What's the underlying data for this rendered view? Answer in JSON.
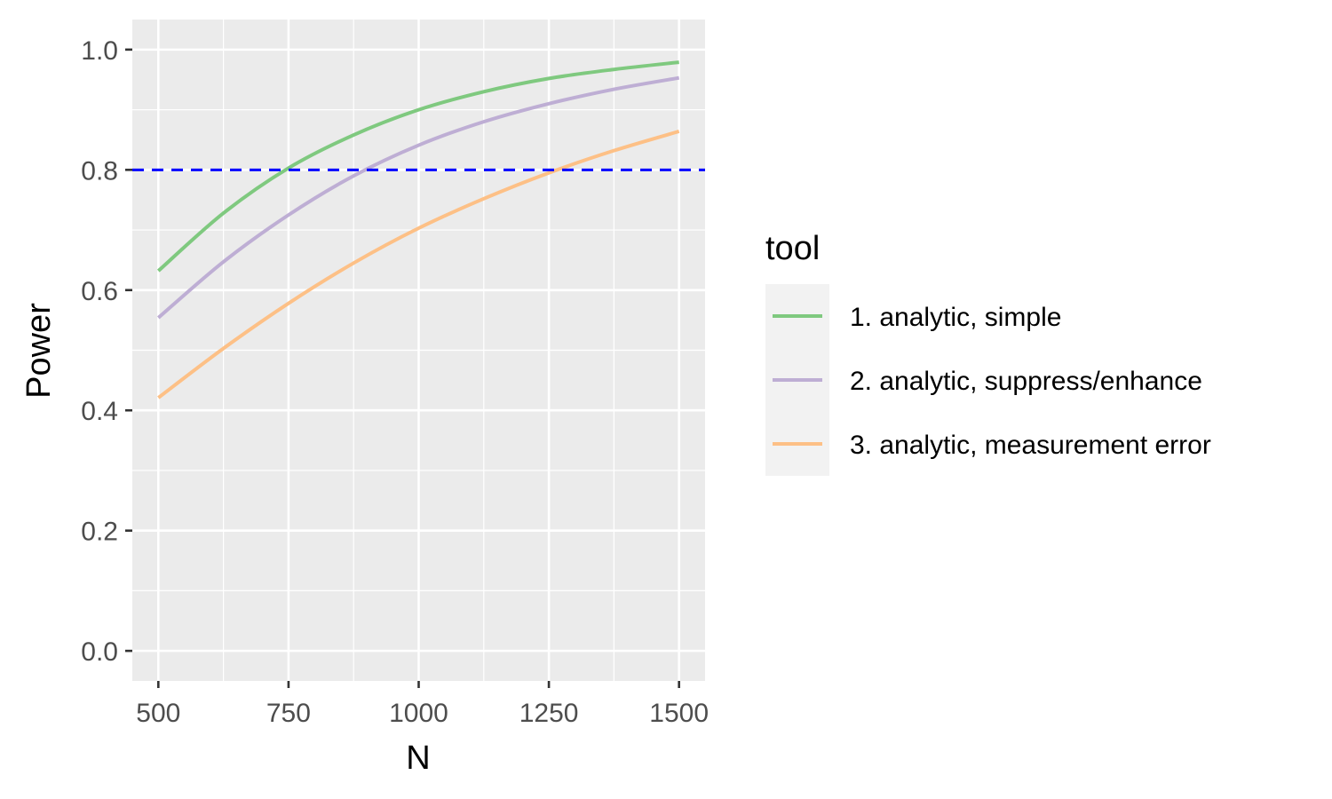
{
  "chart_data": {
    "type": "line",
    "title": "",
    "xlabel": "N",
    "ylabel": "Power",
    "xlim": [
      450,
      1550
    ],
    "ylim": [
      -0.05,
      1.05
    ],
    "x_ticks": [
      500,
      750,
      1000,
      1250,
      1500
    ],
    "x_tick_labels": [
      "500",
      "750",
      "1000",
      "1250",
      "1500"
    ],
    "y_ticks": [
      0.0,
      0.2,
      0.4,
      0.6,
      0.8,
      1.0
    ],
    "y_tick_labels": [
      "0.0",
      "0.2",
      "0.4",
      "0.6",
      "0.8",
      "1.0"
    ],
    "grid": true,
    "panel_background": "#EBEBEB",
    "grid_color": "#FFFFFF",
    "legend": {
      "title": "tool",
      "position": "right"
    },
    "reference_line": {
      "orientation": "horizontal",
      "y": 0.8,
      "color": "#0000FF",
      "style": "dashed"
    },
    "x": [
      500,
      625,
      750,
      875,
      1000,
      1125,
      1250,
      1375,
      1500
    ],
    "series": [
      {
        "name": "1. analytic, simple",
        "color": "#7FC97F",
        "values": [
          0.632,
          0.728,
          0.803,
          0.858,
          0.9,
          0.93,
          0.952,
          0.967,
          0.979
        ]
      },
      {
        "name": "2. analytic, suppress/enhance",
        "color": "#BEAED4",
        "values": [
          0.554,
          0.647,
          0.725,
          0.79,
          0.841,
          0.88,
          0.91,
          0.934,
          0.953
        ]
      },
      {
        "name": "3. analytic, measurement error",
        "color": "#FDC086",
        "values": [
          0.421,
          0.503,
          0.578,
          0.645,
          0.703,
          0.752,
          0.795,
          0.832,
          0.864
        ]
      }
    ]
  }
}
